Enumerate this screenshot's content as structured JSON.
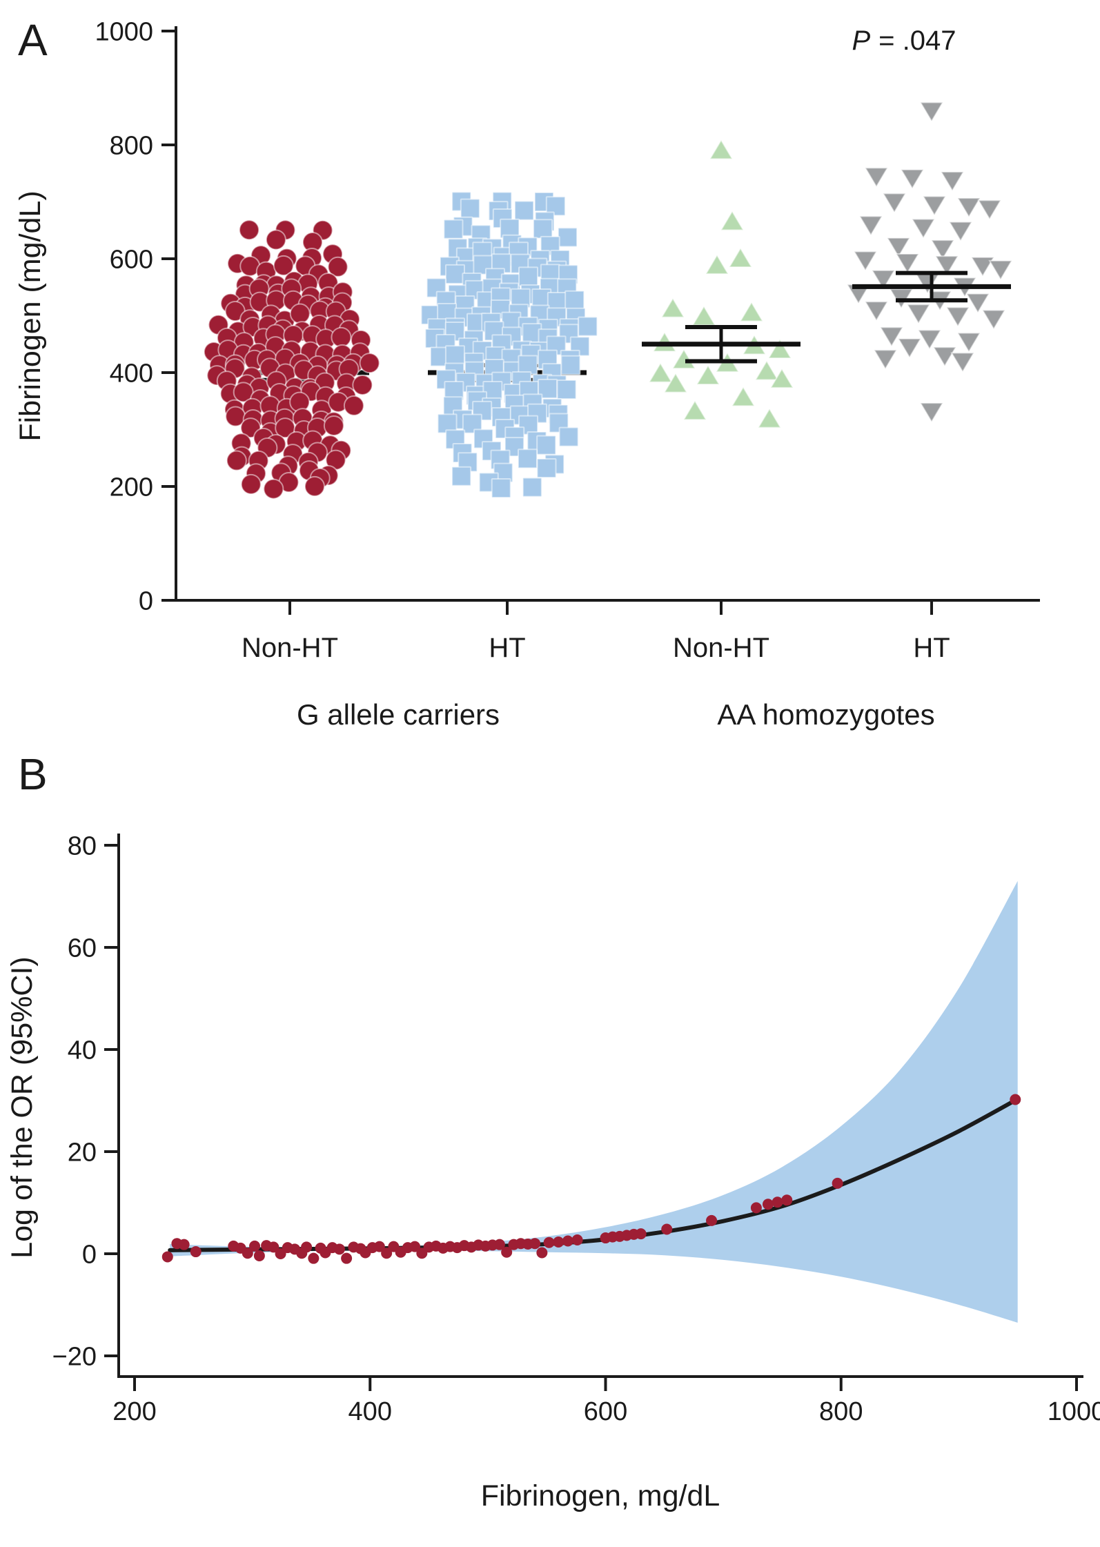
{
  "figure": {
    "panels": [
      {
        "letter": "A"
      },
      {
        "letter": "B"
      }
    ]
  },
  "chart_data": [
    {
      "id": "panel-a",
      "type": "scatter",
      "subtype": "beeswarm-dotplot-with-mean-sem",
      "ylabel": "Fibrinogen (mg/dL)",
      "ylim": [
        0,
        1000
      ],
      "yticks": [
        0,
        200,
        400,
        600,
        800,
        1000
      ],
      "annotation": {
        "italic": "P",
        "rest": "= .047"
      },
      "families": [
        "G allele carriers",
        "AA homozygotes"
      ],
      "groups": [
        {
          "label": "Non-HT",
          "family": "G allele carriers",
          "marker": "circle",
          "color": "#9E1E34",
          "mean": 400,
          "sem": 13,
          "rows": [
            [
              655,
              3
            ],
            [
              630,
              2
            ],
            [
              600,
              5
            ],
            [
              580,
              6
            ],
            [
              560,
              6
            ],
            [
              540,
              7
            ],
            [
              520,
              8
            ],
            [
              500,
              8
            ],
            [
              480,
              9
            ],
            [
              460,
              9
            ],
            [
              440,
              10
            ],
            [
              420,
              10
            ],
            [
              400,
              9
            ],
            [
              380,
              9
            ],
            [
              360,
              8
            ],
            [
              340,
              8
            ],
            [
              320,
              7
            ],
            [
              300,
              6
            ],
            [
              280,
              6
            ],
            [
              260,
              5
            ],
            [
              240,
              5
            ],
            [
              225,
              4
            ],
            [
              210,
              3
            ],
            [
              198,
              2
            ]
          ]
        },
        {
          "label": "HT",
          "family": "G allele carriers",
          "marker": "square",
          "color": "#A5C8E9",
          "mean": 400,
          "sem": 13,
          "rows": [
            [
              705,
              3
            ],
            [
              685,
              4
            ],
            [
              665,
              3
            ],
            [
              645,
              5
            ],
            [
              625,
              6
            ],
            [
              605,
              6
            ],
            [
              585,
              7
            ],
            [
              565,
              7
            ],
            [
              545,
              8
            ],
            [
              525,
              8
            ],
            [
              505,
              9
            ],
            [
              485,
              9
            ],
            [
              465,
              8
            ],
            [
              445,
              8
            ],
            [
              425,
              8
            ],
            [
              405,
              7
            ],
            [
              385,
              7
            ],
            [
              365,
              7
            ],
            [
              345,
              6
            ],
            [
              325,
              6
            ],
            [
              305,
              5
            ],
            [
              285,
              5
            ],
            [
              265,
              4
            ],
            [
              245,
              4
            ],
            [
              225,
              3
            ],
            [
              205,
              2
            ],
            [
              190,
              1
            ]
          ]
        },
        {
          "label": "Non-HT",
          "family": "AA homozygotes",
          "marker": "triangle-up",
          "color": "#B7DBB0",
          "mean": 450,
          "sem": 30,
          "points": [
            [
              0,
              790
            ],
            [
              16,
              665
            ],
            [
              28,
              600
            ],
            [
              -6,
              588
            ],
            [
              -70,
              512
            ],
            [
              44,
              505
            ],
            [
              -25,
              498
            ],
            [
              -82,
              452
            ],
            [
              48,
              447
            ],
            [
              85,
              440
            ],
            [
              -54,
              422
            ],
            [
              9,
              416
            ],
            [
              66,
              402
            ],
            [
              -88,
              398
            ],
            [
              -19,
              394
            ],
            [
              88,
              388
            ],
            [
              -66,
              380
            ],
            [
              32,
              356
            ],
            [
              -38,
              332
            ],
            [
              70,
              318
            ]
          ]
        },
        {
          "label": "HT",
          "family": "AA homozygotes",
          "marker": "triangle-down",
          "color": "#9C9EA0",
          "mean": 551,
          "sem": 24,
          "points": [
            [
              0,
              860
            ],
            [
              -80,
              745
            ],
            [
              -28,
              742
            ],
            [
              30,
              738
            ],
            [
              -54,
              700
            ],
            [
              4,
              695
            ],
            [
              54,
              692
            ],
            [
              84,
              688
            ],
            [
              -88,
              660
            ],
            [
              -12,
              655
            ],
            [
              42,
              650
            ],
            [
              -48,
              622
            ],
            [
              16,
              618
            ],
            [
              -96,
              598
            ],
            [
              -35,
              594
            ],
            [
              22,
              590
            ],
            [
              74,
              588
            ],
            [
              100,
              582
            ],
            [
              -70,
              565
            ],
            [
              -6,
              558
            ],
            [
              48,
              552
            ],
            [
              -106,
              540
            ],
            [
              -44,
              532
            ],
            [
              12,
              528
            ],
            [
              67,
              524
            ],
            [
              -80,
              510
            ],
            [
              -19,
              505
            ],
            [
              38,
              500
            ],
            [
              90,
              495
            ],
            [
              -58,
              465
            ],
            [
              -3,
              460
            ],
            [
              54,
              455
            ],
            [
              -32,
              445
            ],
            [
              19,
              430
            ],
            [
              -67,
              425
            ],
            [
              45,
              420
            ],
            [
              0,
              332
            ]
          ]
        }
      ]
    },
    {
      "id": "panel-b",
      "type": "line",
      "xlabel": "Fibrinogen, mg/dL",
      "ylabel": "Log of the OR (95%CI)",
      "xlim": [
        180,
        1020
      ],
      "ylim": [
        -25,
        82
      ],
      "xticks": [
        200,
        400,
        600,
        800,
        1000
      ],
      "yticks": [
        -20,
        0,
        20,
        40,
        60,
        80
      ],
      "colors": {
        "curve": "#1b1b1b",
        "band": "#AECFEC",
        "points": "#9E1E34"
      },
      "curve": {
        "x": [
          230,
          250,
          300,
          350,
          400,
          450,
          500,
          550,
          600,
          650,
          700,
          750,
          800,
          850,
          900,
          950
        ],
        "y": [
          0.7,
          0.75,
          0.85,
          0.95,
          1.05,
          1.2,
          1.45,
          1.9,
          2.8,
          4.3,
          6.4,
          9.3,
          13.5,
          18.5,
          24,
          30.3
        ]
      },
      "band": {
        "x": [
          230,
          250,
          300,
          350,
          400,
          450,
          500,
          550,
          600,
          650,
          700,
          750,
          800,
          850,
          900,
          950
        ],
        "upper": [
          1.9,
          1.7,
          1.35,
          1.3,
          1.4,
          1.7,
          2.3,
          3.4,
          5.2,
          7.8,
          11.5,
          17,
          25,
          36,
          52,
          73
        ],
        "lower": [
          -0.5,
          -0.3,
          0.2,
          0.5,
          0.6,
          0.6,
          0.5,
          0.3,
          0.1,
          -0.3,
          -1.2,
          -2.6,
          -4.5,
          -7,
          -10,
          -13.5
        ]
      },
      "points": [
        [
          228,
          -0.6
        ],
        [
          236,
          2.0
        ],
        [
          242,
          1.8
        ],
        [
          252,
          0.4
        ],
        [
          284,
          1.5
        ],
        [
          290,
          1.1
        ],
        [
          296,
          0.1
        ],
        [
          302,
          1.5
        ],
        [
          306,
          -0.4
        ],
        [
          312,
          1.6
        ],
        [
          318,
          1.3
        ],
        [
          324,
          0.0
        ],
        [
          330,
          1.2
        ],
        [
          336,
          0.9
        ],
        [
          342,
          0.1
        ],
        [
          346,
          1.3
        ],
        [
          352,
          -0.9
        ],
        [
          358,
          1.1
        ],
        [
          362,
          0.2
        ],
        [
          368,
          1.2
        ],
        [
          374,
          0.9
        ],
        [
          380,
          -0.9
        ],
        [
          386,
          1.3
        ],
        [
          392,
          1.0
        ],
        [
          396,
          0.2
        ],
        [
          402,
          1.2
        ],
        [
          408,
          1.4
        ],
        [
          414,
          0.1
        ],
        [
          420,
          1.4
        ],
        [
          426,
          0.3
        ],
        [
          432,
          1.2
        ],
        [
          438,
          1.4
        ],
        [
          444,
          0.1
        ],
        [
          450,
          1.3
        ],
        [
          456,
          1.5
        ],
        [
          462,
          1.1
        ],
        [
          468,
          1.4
        ],
        [
          474,
          1.2
        ],
        [
          480,
          1.6
        ],
        [
          486,
          1.3
        ],
        [
          492,
          1.7
        ],
        [
          498,
          1.5
        ],
        [
          504,
          1.7
        ],
        [
          510,
          1.8
        ],
        [
          516,
          0.3
        ],
        [
          522,
          1.8
        ],
        [
          528,
          2.0
        ],
        [
          534,
          1.9
        ],
        [
          540,
          2.0
        ],
        [
          546,
          0.2
        ],
        [
          552,
          2.2
        ],
        [
          560,
          2.3
        ],
        [
          568,
          2.5
        ],
        [
          576,
          2.7
        ],
        [
          600,
          3.1
        ],
        [
          606,
          3.3
        ],
        [
          612,
          3.4
        ],
        [
          618,
          3.6
        ],
        [
          624,
          3.8
        ],
        [
          630,
          3.9
        ],
        [
          652,
          4.8
        ],
        [
          690,
          6.5
        ],
        [
          728,
          9.0
        ],
        [
          738,
          9.7
        ],
        [
          746,
          10.1
        ],
        [
          754,
          10.5
        ],
        [
          797,
          13.8
        ],
        [
          948,
          30.2
        ]
      ]
    }
  ]
}
